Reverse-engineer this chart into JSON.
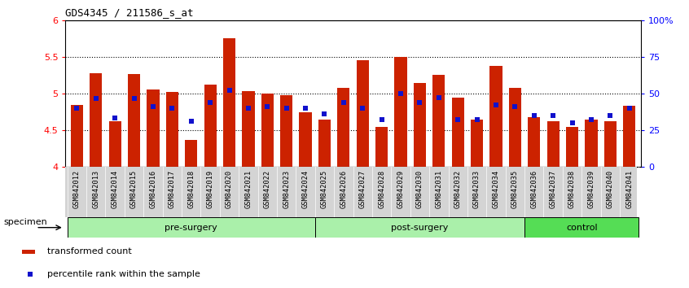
{
  "title": "GDS4345 / 211586_s_at",
  "samples": [
    "GSM842012",
    "GSM842013",
    "GSM842014",
    "GSM842015",
    "GSM842016",
    "GSM842017",
    "GSM842018",
    "GSM842019",
    "GSM842020",
    "GSM842021",
    "GSM842022",
    "GSM842023",
    "GSM842024",
    "GSM842025",
    "GSM842026",
    "GSM842027",
    "GSM842028",
    "GSM842029",
    "GSM842030",
    "GSM842031",
    "GSM842032",
    "GSM842033",
    "GSM842034",
    "GSM842035",
    "GSM842036",
    "GSM842037",
    "GSM842038",
    "GSM842039",
    "GSM842040",
    "GSM842041"
  ],
  "red_values": [
    4.85,
    5.28,
    4.62,
    5.27,
    5.06,
    5.02,
    4.37,
    5.12,
    5.75,
    5.03,
    5.0,
    4.98,
    4.75,
    4.65,
    5.08,
    5.45,
    4.55,
    5.5,
    5.15,
    5.25,
    4.95,
    4.65,
    5.38,
    5.08,
    4.68,
    4.62,
    4.55,
    4.65,
    4.62,
    4.83
  ],
  "blue_values": [
    4.8,
    4.93,
    4.67,
    4.93,
    4.82,
    4.8,
    4.62,
    4.88,
    5.05,
    4.8,
    4.82,
    4.8,
    4.8,
    4.72,
    4.88,
    4.8,
    4.65,
    5.0,
    4.88,
    4.95,
    4.65,
    4.65,
    4.85,
    4.82,
    4.7,
    4.7,
    4.6,
    4.65,
    4.7,
    4.8
  ],
  "group_boundaries": [
    0,
    13,
    24,
    30
  ],
  "group_labels": [
    "pre-surgery",
    "post-surgery",
    "control"
  ],
  "group_colors": [
    "#aaf0aa",
    "#aaf0aa",
    "#55dd55"
  ],
  "ylim": [
    4.0,
    6.0
  ],
  "yticks": [
    4.0,
    4.5,
    5.0,
    5.5,
    6.0
  ],
  "ytick_labels": [
    "4",
    "4.5",
    "5",
    "5.5",
    "6"
  ],
  "right_ytick_percents": [
    0,
    25,
    50,
    75,
    100
  ],
  "right_ytick_labels": [
    "0",
    "25",
    "50",
    "75",
    "100%"
  ],
  "hlines": [
    4.5,
    5.0,
    5.5
  ],
  "bar_color": "#CC2200",
  "blue_color": "#1111CC",
  "bar_width": 0.65,
  "legend_items": [
    "transformed count",
    "percentile rank within the sample"
  ],
  "xtick_bg": "#d4d4d4",
  "specimen_label": "specimen"
}
